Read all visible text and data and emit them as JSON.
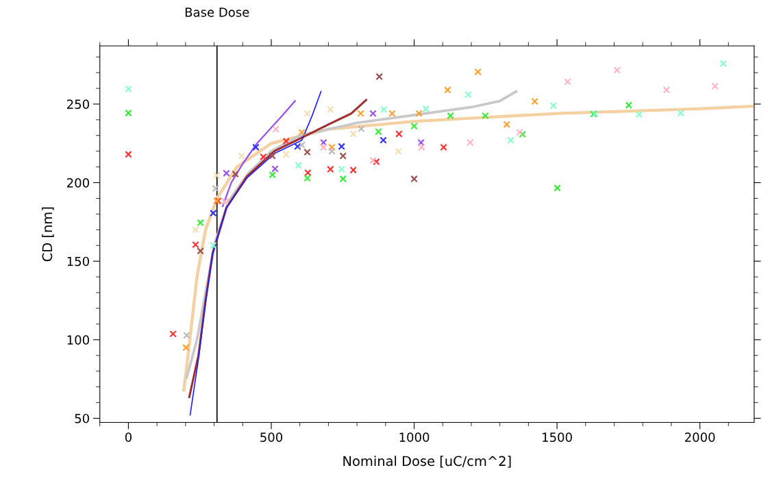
{
  "chart_data": {
    "type": "scatter",
    "xlabel": "Nominal Dose [uC/cm^2]",
    "ylabel": "CD [nm]",
    "marker": "cross",
    "grid": false,
    "legend": false,
    "xlim": [
      -100,
      2190
    ],
    "ylim": [
      47.4,
      287
    ],
    "xticks": [
      0,
      500,
      1000,
      1500,
      2000
    ],
    "yticks": [
      50,
      100,
      150,
      200,
      250
    ],
    "ref_lines": [
      {
        "axis": "x",
        "value": 310,
        "label": "Base Dose",
        "color": "#000000"
      }
    ],
    "series": [
      {
        "color": "#ff3333",
        "x": [
          0,
          156,
          235,
          314,
          472,
          552,
          628,
          707,
          787,
          868,
          947,
          1103
        ],
        "values": [
          218,
          103.7,
          160.5,
          188.4,
          216.4,
          226.4,
          206.3,
          208.5,
          208,
          213.3,
          231,
          222.5
        ]
      },
      {
        "color": "#ffa030",
        "x": [
          201,
          309,
          607,
          712,
          813,
          923,
          1017,
          1117,
          1223,
          1324,
          1422
        ],
        "values": [
          95,
          188.4,
          232,
          222.5,
          244,
          244,
          244,
          259,
          270.5,
          237,
          251.7
        ]
      },
      {
        "color": "#33ee33",
        "x": [
          0,
          252,
          504,
          626,
          751,
          875,
          1000,
          1127,
          1249,
          1379,
          1501,
          1628,
          1751
        ],
        "values": [
          244.3,
          174.5,
          205,
          202.8,
          202.4,
          232.4,
          236,
          242.6,
          242.6,
          230.8,
          196.6,
          243.7,
          249.3
        ]
      },
      {
        "color": "#88ffcc",
        "x": [
          0,
          297,
          595,
          746,
          894,
          1041,
          1189,
          1338,
          1487,
          1633,
          1787,
          1933,
          2082
        ],
        "values": [
          259.6,
          160,
          211,
          208.5,
          246.5,
          247,
          256,
          227,
          249,
          243.7,
          243.4,
          244.3,
          275.8
        ]
      },
      {
        "color": "#3333ff",
        "x": [
          297,
          446,
          592,
          746,
          892
        ],
        "values": [
          180.6,
          222.5,
          223,
          223,
          227
        ]
      },
      {
        "color": "#9955ee",
        "x": [
          343,
          513,
          683,
          856,
          1024
        ],
        "values": [
          206,
          208.8,
          225.5,
          244,
          225.5
        ]
      },
      {
        "color": "#a05050",
        "x": [
          252,
          374,
          504,
          626,
          751,
          878,
          1000
        ],
        "values": [
          156.5,
          205.5,
          217,
          219.4,
          217,
          267.5,
          202.4
        ]
      },
      {
        "color": "#ffb6c1",
        "x": [
          338,
          516,
          683,
          856,
          1026,
          1196,
          1369,
          1537,
          1710,
          1883,
          2053
        ],
        "values": [
          188,
          234,
          222.5,
          214.2,
          222.5,
          225.5,
          232,
          264.2,
          271.6,
          259,
          261.4
        ]
      },
      {
        "color": "#bbbbbb",
        "x": [
          204,
          305,
          607,
          712,
          815
        ],
        "values": [
          102.8,
          196.3,
          224,
          220,
          234.3
        ]
      },
      {
        "color": "#f5deb3",
        "x": [
          235,
          309,
          396,
          552,
          626,
          707,
          787,
          945
        ],
        "values": [
          170,
          204.6,
          217,
          218,
          244,
          246.5,
          231,
          219.8
        ]
      },
      {
        "type": "line",
        "color": "#f5d0a0",
        "marker": "none",
        "x": [
          194,
          215,
          240,
          270,
          310,
          380,
          500,
          700,
          1000,
          1500,
          2000,
          2190
        ],
        "values": [
          68,
          100,
          140,
          170,
          190,
          210,
          225,
          234,
          239,
          244,
          247,
          248.7
        ]
      },
      {
        "type": "line",
        "color": "#c8c8c8",
        "marker": "none",
        "x": [
          204,
          240,
          270,
          300,
          350,
          420,
          500,
          600,
          800,
          1000,
          1200,
          1300,
          1357
        ],
        "values": [
          76,
          100,
          130,
          160,
          188,
          206,
          220,
          230,
          238,
          243,
          248,
          252,
          258
        ]
      },
      {
        "type": "line",
        "color": "#a03030",
        "marker": "none",
        "x": [
          213,
          245,
          270,
          295,
          343,
          415,
          511,
          600,
          700,
          780,
          832
        ],
        "values": [
          63.5,
          90,
          125,
          155,
          184,
          204,
          220,
          228,
          237,
          244,
          252.6
        ]
      },
      {
        "type": "line",
        "color": "#9955ee",
        "marker": "none",
        "x": [
          330,
          360,
          400,
          450,
          500,
          540,
          583
        ],
        "values": [
          185,
          200,
          212,
          225,
          235,
          243,
          252
        ]
      },
      {
        "type": "line",
        "color": "#2020ff",
        "marker": "none",
        "x": [
          216,
          247,
          271,
          295,
          343,
          415,
          511,
          607,
          643,
          674
        ],
        "values": [
          52,
          90,
          125,
          155,
          184,
          203,
          218.5,
          227,
          242.6,
          258
        ]
      }
    ]
  }
}
